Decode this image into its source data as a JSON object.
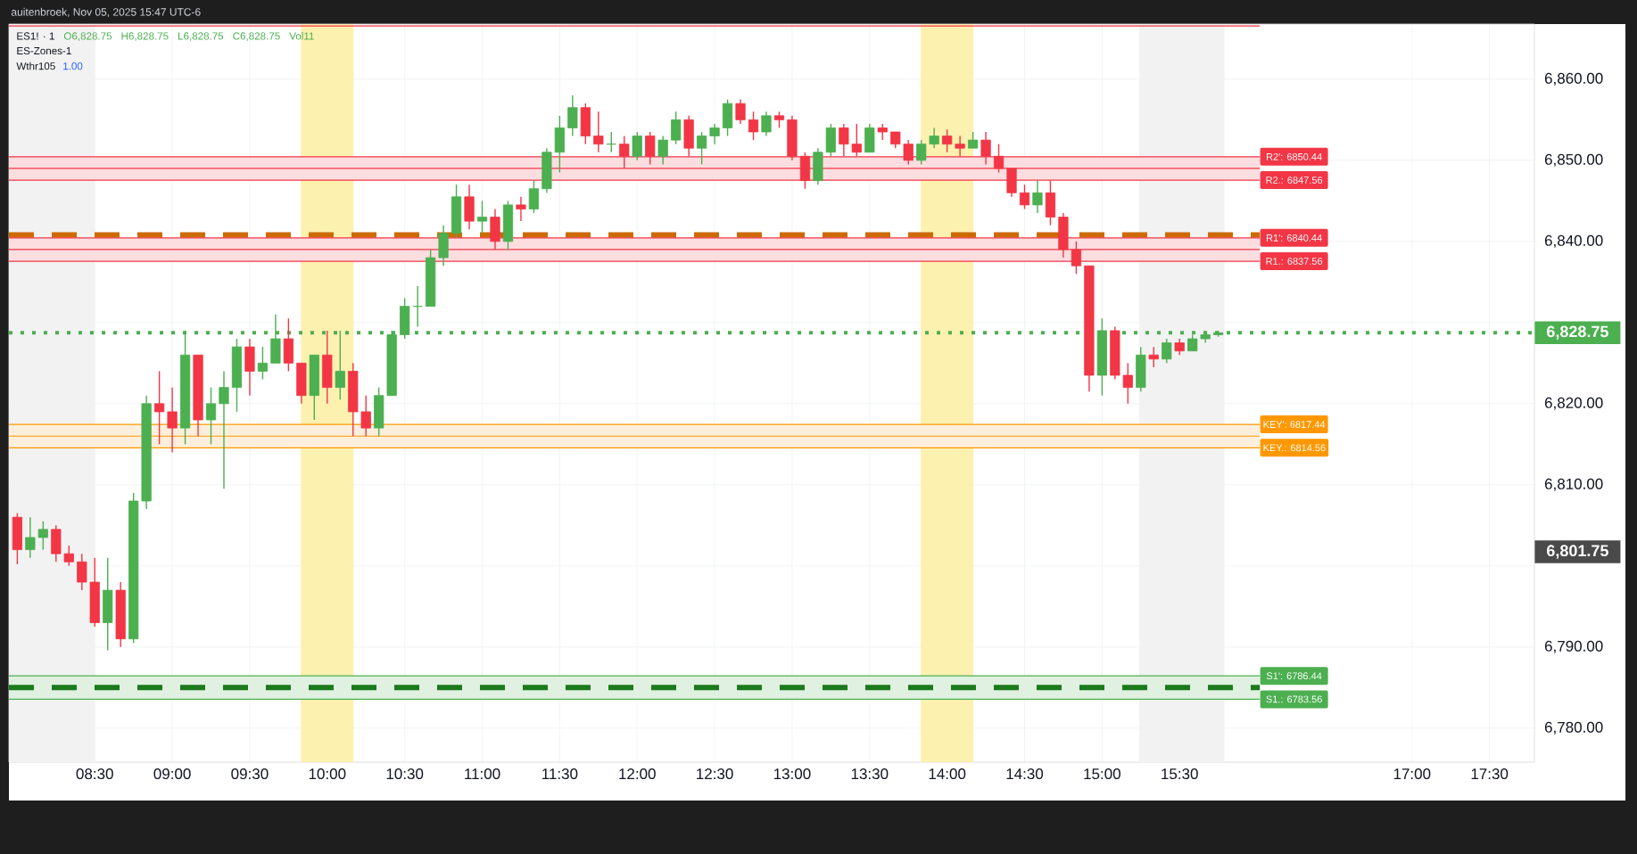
{
  "chart_data": {
    "type": "candlestick",
    "title": "ES1! · 1",
    "x": [
      8,
      8.0833,
      8.1667,
      8.25,
      8.3333,
      8.4167,
      8.5,
      8.5833,
      8.6667,
      8.75,
      8.8333,
      8.9167,
      9,
      9.0833,
      9.1667,
      9.25,
      9.3333,
      9.4167,
      9.5,
      9.5833,
      9.6667,
      9.75,
      9.8333,
      9.9167,
      10,
      10.0833,
      10.1667,
      10.25,
      10.3333,
      10.4167,
      10.5,
      10.5833,
      10.6667,
      10.75,
      10.8333,
      10.9167,
      11,
      11.0833,
      11.1667,
      11.25,
      11.3333,
      11.4167,
      11.5,
      11.5833,
      11.6667,
      11.75,
      11.8333,
      11.9167,
      12,
      12.0833,
      12.1667,
      12.25,
      12.3333,
      12.4167,
      12.5,
      12.5833,
      12.6667,
      12.75,
      12.8333,
      12.9167,
      13,
      13.0833,
      13.1667,
      13.25,
      13.3333,
      13.4167,
      13.5,
      13.5833,
      13.6667,
      13.75,
      13.8333,
      13.9167,
      14,
      14.0833,
      14.1667,
      14.25,
      14.3333,
      14.4167,
      14.5,
      14.5833,
      14.6667,
      14.75,
      14.8333,
      14.9167,
      15,
      15.0833,
      15.1667,
      15.25,
      15.3333,
      15.4167,
      15.5,
      15.5833,
      15.6667,
      15.75
    ],
    "ohlc": [
      [
        6806,
        6806.5,
        6800.2,
        6802
      ],
      [
        6802,
        6806,
        6801,
        6803.5
      ],
      [
        6803.5,
        6805.5,
        6802,
        6804.5
      ],
      [
        6804.5,
        6805,
        6800.5,
        6801.5
      ],
      [
        6801.5,
        6802.5,
        6800,
        6800.5
      ],
      [
        6800.5,
        6801.5,
        6797,
        6798
      ],
      [
        6798,
        6801,
        6792.5,
        6793
      ],
      [
        6793,
        6801,
        6789.6,
        6797
      ],
      [
        6797,
        6798,
        6790,
        6791
      ],
      [
        6791,
        6809,
        6790.5,
        6808
      ],
      [
        6808,
        6821,
        6807,
        6820
      ],
      [
        6820,
        6824,
        6815,
        6819
      ],
      [
        6819,
        6822,
        6814,
        6817
      ],
      [
        6817,
        6829,
        6815,
        6826
      ],
      [
        6826,
        6826,
        6816,
        6818
      ],
      [
        6818,
        6822,
        6815,
        6820
      ],
      [
        6820,
        6824,
        6809.5,
        6822
      ],
      [
        6822,
        6828,
        6819,
        6827
      ],
      [
        6827,
        6828,
        6821,
        6824
      ],
      [
        6824,
        6827,
        6823,
        6825
      ],
      [
        6825,
        6831,
        6825,
        6828
      ],
      [
        6828,
        6830.5,
        6824,
        6825
      ],
      [
        6825,
        6825,
        6820,
        6821
      ],
      [
        6821,
        6826,
        6818,
        6826
      ],
      [
        6826,
        6829,
        6820,
        6822
      ],
      [
        6822,
        6829,
        6820.5,
        6824
      ],
      [
        6824,
        6825,
        6816,
        6819
      ],
      [
        6819,
        6821,
        6816,
        6817
      ],
      [
        6817,
        6822,
        6816,
        6821
      ],
      [
        6821,
        6829,
        6821,
        6828.5
      ],
      [
        6828.5,
        6833,
        6828,
        6832
      ],
      [
        6832,
        6834.5,
        6829.5,
        6832
      ],
      [
        6832,
        6839,
        6832,
        6838
      ],
      [
        6838,
        6842,
        6837,
        6841
      ],
      [
        6841,
        6847,
        6840.5,
        6845.5
      ],
      [
        6845.5,
        6847,
        6841.5,
        6842.5
      ],
      [
        6842.5,
        6845,
        6841,
        6843
      ],
      [
        6843,
        6844,
        6839,
        6840
      ],
      [
        6840,
        6845,
        6839,
        6844.5
      ],
      [
        6844.5,
        6845.5,
        6842.5,
        6844
      ],
      [
        6844,
        6847.5,
        6843.5,
        6846.5
      ],
      [
        6846.5,
        6851.5,
        6846,
        6851
      ],
      [
        6851,
        6855.5,
        6848.5,
        6854
      ],
      [
        6854,
        6858,
        6853,
        6856.5
      ],
      [
        6856.5,
        6857,
        6852,
        6853
      ],
      [
        6853,
        6856,
        6851,
        6852
      ],
      [
        6852,
        6853.5,
        6851,
        6852
      ],
      [
        6852,
        6853,
        6849,
        6850.5
      ],
      [
        6850.5,
        6853.5,
        6850,
        6853
      ],
      [
        6853,
        6853.5,
        6849.5,
        6850.5
      ],
      [
        6850.5,
        6853,
        6849.5,
        6852.5
      ],
      [
        6852.5,
        6856,
        6852,
        6855
      ],
      [
        6855,
        6855.5,
        6850.5,
        6851.5
      ],
      [
        6851.5,
        6853.5,
        6849.5,
        6853
      ],
      [
        6853,
        6854.5,
        6852,
        6854
      ],
      [
        6854,
        6857.5,
        6853,
        6857
      ],
      [
        6857,
        6857.5,
        6854.5,
        6855
      ],
      [
        6855,
        6856,
        6852.5,
        6853.5
      ],
      [
        6853.5,
        6856,
        6853,
        6855.5
      ],
      [
        6855.5,
        6856,
        6854,
        6855
      ],
      [
        6855,
        6855.5,
        6850,
        6850.5
      ],
      [
        6850.5,
        6851,
        6846.5,
        6847.5
      ],
      [
        6847.5,
        6851.5,
        6847,
        6851
      ],
      [
        6851,
        6854.5,
        6850.5,
        6854
      ],
      [
        6854,
        6854.5,
        6850.5,
        6852
      ],
      [
        6852,
        6854.5,
        6850.5,
        6851
      ],
      [
        6851,
        6854.5,
        6851,
        6854
      ],
      [
        6854,
        6854.5,
        6852.5,
        6853.5
      ],
      [
        6853.5,
        6853.5,
        6851.5,
        6852
      ],
      [
        6852,
        6852.5,
        6849.5,
        6850
      ],
      [
        6850,
        6852.5,
        6849.5,
        6852
      ],
      [
        6852,
        6854,
        6851.5,
        6853
      ],
      [
        6853,
        6853.8,
        6851,
        6852
      ],
      [
        6852,
        6853,
        6850.5,
        6851.5
      ],
      [
        6851.5,
        6853.5,
        6851.5,
        6852.5
      ],
      [
        6852.5,
        6853.5,
        6849.5,
        6850.5
      ],
      [
        6850.5,
        6852,
        6848.5,
        6849
      ],
      [
        6849,
        6849,
        6845.5,
        6846
      ],
      [
        6846,
        6847,
        6844,
        6844.5
      ],
      [
        6844.5,
        6847.5,
        6843.5,
        6846
      ],
      [
        6846,
        6847.5,
        6842,
        6843
      ],
      [
        6843,
        6843.5,
        6838,
        6839
      ],
      [
        6839,
        6840,
        6836,
        6837
      ],
      [
        6837,
        6837,
        6821.5,
        6823.5
      ],
      [
        6823.5,
        6830.5,
        6821,
        6829
      ],
      [
        6829,
        6829.5,
        6823,
        6823.5
      ],
      [
        6823.5,
        6825,
        6820,
        6822
      ],
      [
        6822,
        6827,
        6821.5,
        6826
      ],
      [
        6826,
        6827,
        6824.5,
        6825.5
      ],
      [
        6825.5,
        6828,
        6825,
        6827.5
      ],
      [
        6827.5,
        6828,
        6826,
        6826.5
      ],
      [
        6826.5,
        6828.5,
        6826.5,
        6828
      ],
      [
        6828,
        6829,
        6827.5,
        6828.5
      ],
      [
        6828.5,
        6829,
        6828.25,
        6828.75
      ]
    ],
    "colors": [
      "#f23645",
      "#4caf50",
      "#4caf50",
      "#f23645",
      "#f23645",
      "#f23645",
      "#f23645",
      "#4caf50",
      "#f23645",
      "#4caf50",
      "#4caf50",
      "#f23645",
      "#f23645",
      "#4caf50",
      "#f23645",
      "#4caf50",
      "#4caf50",
      "#4caf50",
      "#f23645",
      "#4caf50",
      "#4caf50",
      "#f23645",
      "#f23645",
      "#4caf50",
      "#f23645",
      "#4caf50",
      "#f23645",
      "#f23645",
      "#4caf50",
      "#4caf50",
      "#4caf50",
      "#4caf50",
      "#4caf50",
      "#4caf50",
      "#4caf50",
      "#f23645",
      "#4caf50",
      "#f23645",
      "#4caf50",
      "#f23645",
      "#4caf50",
      "#4caf50",
      "#4caf50",
      "#4caf50",
      "#f23645",
      "#f23645",
      "#4caf50",
      "#f23645",
      "#4caf50",
      "#f23645",
      "#4caf50",
      "#4caf50",
      "#f23645",
      "#4caf50",
      "#4caf50",
      "#4caf50",
      "#f23645",
      "#f23645",
      "#4caf50",
      "#f23645",
      "#f23645",
      "#f23645",
      "#4caf50",
      "#4caf50",
      "#f23645",
      "#f23645",
      "#4caf50",
      "#f23645",
      "#f23645",
      "#f23645",
      "#4caf50",
      "#4caf50",
      "#f23645",
      "#f23645",
      "#4caf50",
      "#f23645",
      "#f23645",
      "#f23645",
      "#f23645",
      "#4caf50",
      "#f23645",
      "#f23645",
      "#f23645",
      "#f23645",
      "#4caf50",
      "#f23645",
      "#f23645",
      "#4caf50",
      "#f23645",
      "#4caf50",
      "#f23645",
      "#4caf50",
      "#4caf50",
      "#4caf50"
    ],
    "xlim": [
      7.946,
      17.79
    ],
    "xticks": [
      {
        "value": 8,
        "label": null
      },
      {
        "value": 8.5,
        "label": "08:30"
      },
      {
        "value": 9,
        "label": "09:00"
      },
      {
        "value": 9.5,
        "label": "09:30"
      },
      {
        "value": 10,
        "label": "10:00"
      },
      {
        "value": 10.5,
        "label": "10:30"
      },
      {
        "value": 11,
        "label": "11:00"
      },
      {
        "value": 11.5,
        "label": "11:30"
      },
      {
        "value": 12,
        "label": "12:00"
      },
      {
        "value": 12.5,
        "label": "12:30"
      },
      {
        "value": 13,
        "label": "13:00"
      },
      {
        "value": 13.5,
        "label": "13:30"
      },
      {
        "value": 14,
        "label": "14:00"
      },
      {
        "value": 14.5,
        "label": "14:30"
      },
      {
        "value": 15,
        "label": "15:00"
      },
      {
        "value": 15.5,
        "label": "15:30"
      },
      {
        "value": 17,
        "label": "17:00"
      },
      {
        "value": 17.5,
        "label": "17:30"
      }
    ],
    "ylim": [
      6775.8,
      6866.8
    ],
    "yticks": [
      {
        "value": 6780,
        "label": "6,780.00"
      },
      {
        "value": 6790,
        "label": "6,790.00"
      },
      {
        "value": 6800,
        "label": null
      },
      {
        "value": 6810,
        "label": "6,810.00"
      },
      {
        "value": 6820,
        "label": "6,820.00"
      },
      {
        "value": 6830,
        "label": null
      },
      {
        "value": 6840,
        "label": "6,840.00"
      },
      {
        "value": 6850,
        "label": "6,850.00"
      },
      {
        "value": 6860,
        "label": "6,860.00"
      }
    ],
    "grid": true,
    "bands": [
      {
        "axis": "x",
        "from": 7.946,
        "to": 8.5,
        "color": "#f2f2f2"
      },
      {
        "axis": "x",
        "from": 9.83,
        "to": 10.17,
        "color": "#fdf1b0"
      },
      {
        "axis": "x",
        "from": 13.83,
        "to": 14.17,
        "color": "#fdf1b0"
      },
      {
        "axis": "x",
        "from": 15.24,
        "to": 15.79,
        "color": "#f2f2f2"
      },
      {
        "axis": "y",
        "from": 6847.56,
        "to": 6850.44,
        "color": "#fcdde0"
      },
      {
        "axis": "y",
        "from": 6837.56,
        "to": 6840.44,
        "color": "#fcdde0"
      },
      {
        "axis": "y",
        "from": 6814.56,
        "to": 6817.44,
        "color": "#fdefdc"
      },
      {
        "axis": "y",
        "from": 6783.56,
        "to": 6786.44,
        "color": "#e0f1e1"
      }
    ],
    "ref_lines": [
      {
        "axis": "y",
        "value": 6866.56,
        "color": "#f23645",
        "line_style": "solid"
      },
      {
        "axis": "y",
        "value": 6850.44,
        "label": "R2': 6850.44",
        "color": "#f23645",
        "line_style": "solid"
      },
      {
        "axis": "y",
        "value": 6849,
        "color": "#f23645",
        "line_style": "solid"
      },
      {
        "axis": "y",
        "value": 6847.56,
        "label": "R2.: 6847.56",
        "color": "#f23645",
        "line_style": "solid"
      },
      {
        "axis": "y",
        "value": 6840.8,
        "color": "#cc6a00",
        "line_style": "dashed"
      },
      {
        "axis": "y",
        "value": 6840.44,
        "label": "R1': 6840.44",
        "color": "#f23645",
        "line_style": "solid"
      },
      {
        "axis": "y",
        "value": 6839,
        "color": "#f23645",
        "line_style": "solid"
      },
      {
        "axis": "y",
        "value": 6837.56,
        "label": "R1.: 6837.56",
        "color": "#f23645",
        "line_style": "solid"
      },
      {
        "axis": "y",
        "value": 6828.75,
        "label": "6,828.75",
        "color": "#4caf50",
        "line_style": "dotted"
      },
      {
        "axis": "y",
        "value": 6817.44,
        "label": "KEY': 6817.44",
        "color": "#ff9800",
        "line_style": "solid"
      },
      {
        "axis": "y",
        "value": 6816,
        "color": "#ff9800",
        "line_style": "solid"
      },
      {
        "axis": "y",
        "value": 6814.56,
        "label": "KEY.: 6814.56",
        "color": "#ff9800",
        "line_style": "solid"
      },
      {
        "axis": "y",
        "value": 6786.44,
        "label": "S1': 6786.44",
        "color": "#4caf50",
        "line_style": "solid"
      },
      {
        "axis": "y",
        "value": 6785,
        "color": "#1b7a1b",
        "line_style": "dashed"
      },
      {
        "axis": "y",
        "value": 6783.56,
        "label": "S1.: 6783.56",
        "color": "#4caf50",
        "line_style": "solid"
      }
    ],
    "annotations": [
      "O6,828.75",
      "H6,828.75",
      "L6,828.75",
      "C6,828.75",
      "Vol11",
      "ES-Zones-1",
      "Wthr105",
      "1.00",
      "auitenbroek, Nov 05, 2025 15:47 UTC-6",
      "6,801.75"
    ]
  }
}
